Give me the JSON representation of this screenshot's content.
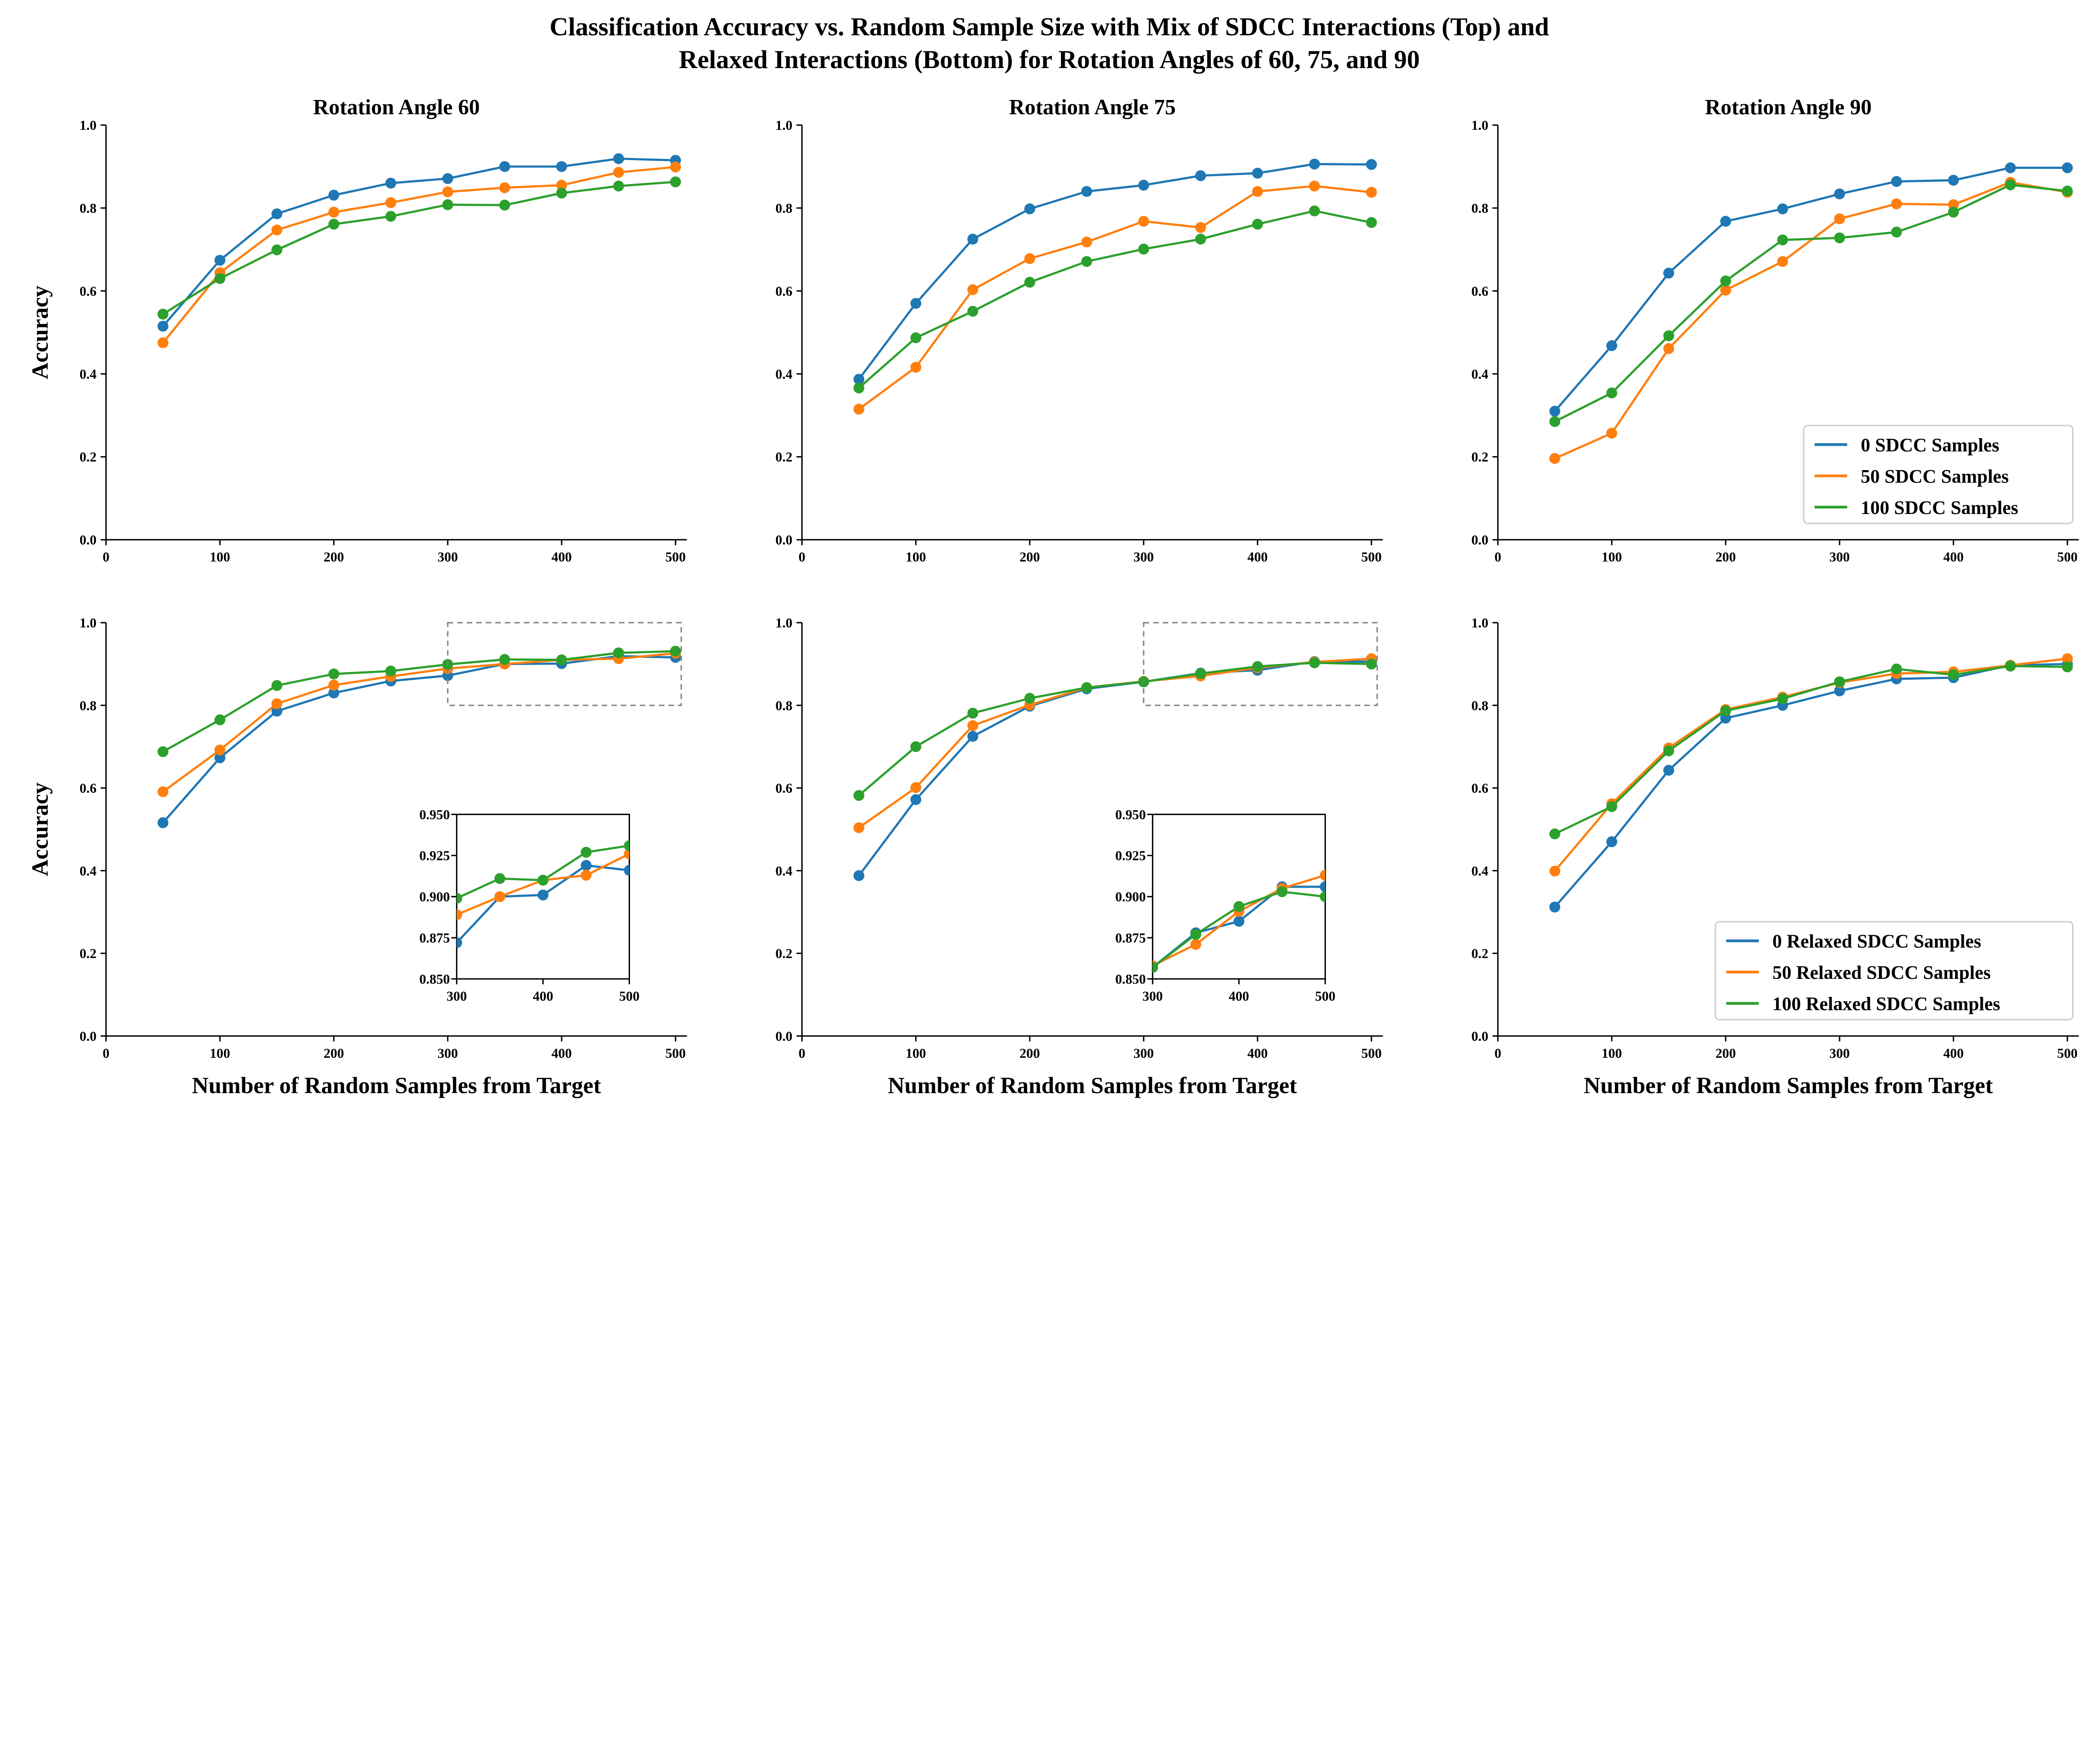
{
  "title_lines": [
    "Classification Accuracy vs. Random Sample Size with Mix of SDCC Interactions (Top) and",
    "Relaxed Interactions (Bottom) for Rotation Angles of 60, 75, and 90"
  ],
  "colors": {
    "series": [
      "#1f77b4",
      "#ff7f0e",
      "#2ca02c"
    ],
    "axis": "#000000",
    "zoom_box": "#808080"
  },
  "chart_data": [
    {
      "type": "line",
      "title": "Rotation Angle 60",
      "xlabel": "",
      "ylabel": "Accuracy",
      "xlim": [
        0,
        510
      ],
      "ylim": [
        0,
        1.0
      ],
      "grid": false,
      "xticks": [
        0,
        100,
        200,
        300,
        400,
        500
      ],
      "yticks": [
        0.0,
        0.2,
        0.4,
        0.6,
        0.8,
        1.0
      ],
      "x": [
        50,
        100,
        150,
        200,
        250,
        300,
        350,
        400,
        450,
        500
      ],
      "series": [
        {
          "values": [
            0.515,
            0.674,
            0.786,
            0.831,
            0.86,
            0.871,
            0.9,
            0.9,
            0.919,
            0.915
          ]
        },
        {
          "values": [
            0.475,
            0.644,
            0.747,
            0.79,
            0.813,
            0.839,
            0.849,
            0.855,
            0.886,
            0.899
          ]
        },
        {
          "values": [
            0.544,
            0.63,
            0.699,
            0.761,
            0.78,
            0.808,
            0.807,
            0.836,
            0.853,
            0.863
          ]
        }
      ]
    },
    {
      "type": "line",
      "title": "Rotation Angle 75",
      "xlabel": "",
      "ylabel": "",
      "xlim": [
        0,
        510
      ],
      "ylim": [
        0,
        1.0
      ],
      "grid": false,
      "xticks": [
        0,
        100,
        200,
        300,
        400,
        500
      ],
      "yticks": [
        0.0,
        0.2,
        0.4,
        0.6,
        0.8,
        1.0
      ],
      "x": [
        50,
        100,
        150,
        200,
        250,
        300,
        350,
        400,
        450,
        500
      ],
      "series": [
        {
          "values": [
            0.387,
            0.57,
            0.725,
            0.798,
            0.84,
            0.855,
            0.878,
            0.884,
            0.906,
            0.905
          ]
        },
        {
          "values": [
            0.315,
            0.416,
            0.603,
            0.678,
            0.718,
            0.768,
            0.753,
            0.84,
            0.853,
            0.838
          ]
        },
        {
          "values": [
            0.366,
            0.487,
            0.551,
            0.621,
            0.671,
            0.701,
            0.725,
            0.761,
            0.793,
            0.765
          ]
        }
      ]
    },
    {
      "type": "line",
      "title": "Rotation Angle 90",
      "xlabel": "",
      "ylabel": "",
      "xlim": [
        0,
        510
      ],
      "ylim": [
        0,
        1.0
      ],
      "grid": false,
      "xticks": [
        0,
        100,
        200,
        300,
        400,
        500
      ],
      "yticks": [
        0.0,
        0.2,
        0.4,
        0.6,
        0.8,
        1.0
      ],
      "x": [
        50,
        100,
        150,
        200,
        250,
        300,
        350,
        400,
        450,
        500
      ],
      "legend_position": "lower-right",
      "series": [
        {
          "name": "0 SDCC Samples",
          "values": [
            0.31,
            0.468,
            0.643,
            0.768,
            0.798,
            0.834,
            0.864,
            0.867,
            0.897,
            0.897
          ]
        },
        {
          "name": "50 SDCC Samples",
          "values": [
            0.196,
            0.257,
            0.461,
            0.602,
            0.671,
            0.774,
            0.81,
            0.808,
            0.862,
            0.838
          ]
        },
        {
          "name": "100 SDCC Samples",
          "values": [
            0.285,
            0.354,
            0.492,
            0.624,
            0.723,
            0.728,
            0.742,
            0.79,
            0.856,
            0.841
          ]
        }
      ]
    },
    {
      "type": "line",
      "title": "",
      "xlabel": "Number of Random Samples from Target",
      "ylabel": "Accuracy",
      "xlim": [
        0,
        510
      ],
      "ylim": [
        0,
        1.0
      ],
      "grid": false,
      "xticks": [
        0,
        100,
        200,
        300,
        400,
        500
      ],
      "yticks": [
        0.0,
        0.2,
        0.4,
        0.6,
        0.8,
        1.0
      ],
      "x": [
        50,
        100,
        150,
        200,
        250,
        300,
        350,
        400,
        450,
        500
      ],
      "zoom_region": {
        "xlim": [
          300,
          505
        ],
        "ylim": [
          0.8,
          1.0
        ]
      },
      "inset": {
        "xlim": [
          300,
          500
        ],
        "ylim": [
          0.85,
          0.95
        ],
        "xticks": [
          "300",
          "400",
          "500"
        ],
        "yticks": [
          "0.850",
          "0.875",
          "0.900",
          "0.925",
          "0.950"
        ]
      },
      "series": [
        {
          "values": [
            0.516,
            0.673,
            0.786,
            0.83,
            0.859,
            0.872,
            0.9,
            0.901,
            0.919,
            0.916
          ]
        },
        {
          "values": [
            0.591,
            0.692,
            0.804,
            0.849,
            0.87,
            0.889,
            0.9,
            0.91,
            0.913,
            0.926
          ]
        },
        {
          "values": [
            0.688,
            0.765,
            0.848,
            0.876,
            0.883,
            0.899,
            0.911,
            0.91,
            0.927,
            0.931
          ]
        }
      ]
    },
    {
      "type": "line",
      "title": "",
      "xlabel": "Number of Random Samples from Target",
      "ylabel": "",
      "xlim": [
        0,
        510
      ],
      "ylim": [
        0,
        1.0
      ],
      "grid": false,
      "xticks": [
        0,
        100,
        200,
        300,
        400,
        500
      ],
      "yticks": [
        0.0,
        0.2,
        0.4,
        0.6,
        0.8,
        1.0
      ],
      "x": [
        50,
        100,
        150,
        200,
        250,
        300,
        350,
        400,
        450,
        500
      ],
      "zoom_region": {
        "xlim": [
          300,
          505
        ],
        "ylim": [
          0.8,
          1.0
        ]
      },
      "inset": {
        "xlim": [
          300,
          500
        ],
        "ylim": [
          0.85,
          0.95
        ],
        "xticks": [
          "300",
          "400",
          "500"
        ],
        "yticks": [
          "0.850",
          "0.875",
          "0.900",
          "0.925",
          "0.950"
        ]
      },
      "series": [
        {
          "values": [
            0.388,
            0.572,
            0.725,
            0.798,
            0.84,
            0.857,
            0.878,
            0.885,
            0.906,
            0.906
          ]
        },
        {
          "values": [
            0.504,
            0.601,
            0.751,
            0.801,
            0.843,
            0.858,
            0.871,
            0.891,
            0.905,
            0.913
          ]
        },
        {
          "values": [
            0.582,
            0.7,
            0.781,
            0.817,
            0.843,
            0.857,
            0.877,
            0.894,
            0.903,
            0.9
          ]
        }
      ]
    },
    {
      "type": "line",
      "title": "",
      "xlabel": "Number of Random Samples from Target",
      "ylabel": "",
      "xlim": [
        0,
        510
      ],
      "ylim": [
        0,
        1.0
      ],
      "grid": false,
      "xticks": [
        0,
        100,
        200,
        300,
        400,
        500
      ],
      "yticks": [
        0.0,
        0.2,
        0.4,
        0.6,
        0.8,
        1.0
      ],
      "x": [
        50,
        100,
        150,
        200,
        250,
        300,
        350,
        400,
        450,
        500
      ],
      "legend_position": "lower-right",
      "series": [
        {
          "name": "0 Relaxed SDCC Samples",
          "values": [
            0.312,
            0.47,
            0.643,
            0.769,
            0.8,
            0.835,
            0.864,
            0.867,
            0.897,
            0.9
          ]
        },
        {
          "name": "50 Relaxed SDCC Samples",
          "values": [
            0.399,
            0.562,
            0.697,
            0.79,
            0.82,
            0.855,
            0.877,
            0.881,
            0.897,
            0.913
          ]
        },
        {
          "name": "100 Relaxed SDCC Samples",
          "values": [
            0.489,
            0.555,
            0.69,
            0.787,
            0.816,
            0.857,
            0.888,
            0.874,
            0.895,
            0.893
          ]
        }
      ]
    }
  ]
}
